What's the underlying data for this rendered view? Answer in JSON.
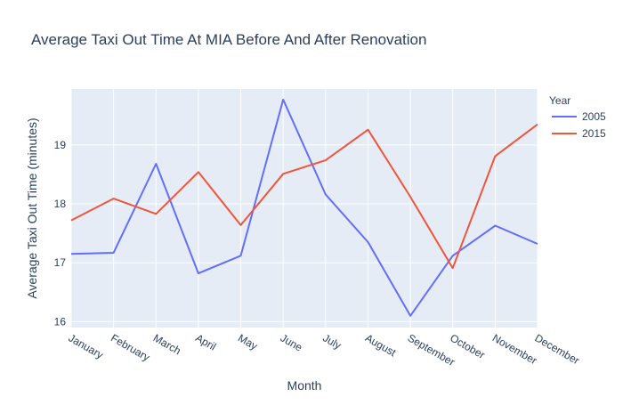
{
  "chart_data": {
    "type": "line",
    "title": "Average Taxi Out Time At MIA Before And After Renovation",
    "xlabel": "Month",
    "ylabel": "Average Taxi Out Time (minutes)",
    "categories": [
      "January",
      "February",
      "March",
      "April",
      "May",
      "June",
      "July",
      "August",
      "September",
      "October",
      "November",
      "December"
    ],
    "ylim": [
      15.9,
      19.95
    ],
    "yticks": [
      16,
      17,
      18,
      19
    ],
    "grid": true,
    "legend": {
      "title": "Year",
      "placement": "top-right"
    },
    "series": [
      {
        "name": "2005",
        "color": "#636efa",
        "values": [
          17.15,
          17.17,
          18.68,
          16.82,
          17.12,
          19.77,
          18.16,
          17.35,
          16.1,
          17.12,
          17.63,
          17.32
        ]
      },
      {
        "name": "2015",
        "color": "#ef553b",
        "values": [
          17.72,
          18.09,
          17.83,
          18.54,
          17.64,
          18.51,
          18.74,
          19.26,
          18.12,
          16.91,
          18.81,
          19.35
        ]
      }
    ]
  }
}
